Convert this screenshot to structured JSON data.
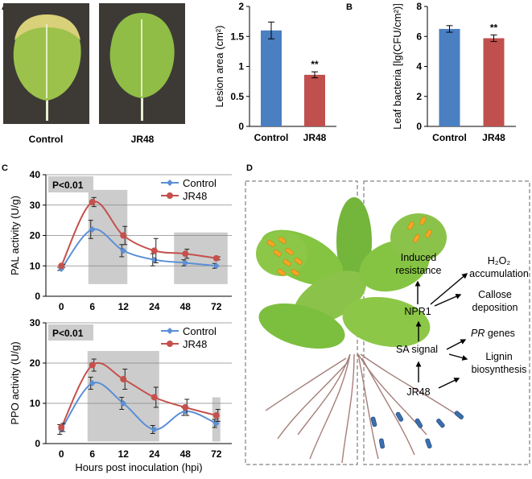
{
  "panel_labels": {
    "a": "A",
    "b": "B",
    "c": "C",
    "d": "D"
  },
  "photos": {
    "control_caption": "Control",
    "jr48_caption": "JR48"
  },
  "colors": {
    "control": "#4a7fc1",
    "jr48": "#c0504d",
    "control_line": "#5b8fd6",
    "jr48_line": "#c5504c",
    "leaf": "#8cc63f",
    "leaf_dark": "#6aa84f",
    "spot": "#f5a623",
    "bacteria": "#3a6fb0",
    "shade": "#cccccc"
  },
  "chart_data": [
    {
      "type": "bar",
      "categories": [
        "Control",
        "JR48"
      ],
      "values": [
        1.6,
        0.86
      ],
      "errors": [
        0.14,
        0.05
      ],
      "ylabel": "Lesion area (cm²)",
      "ylim": [
        0,
        2
      ],
      "yticks": [
        "0",
        "0.5",
        "1",
        "1.5",
        "2"
      ],
      "annotation": "**"
    },
    {
      "type": "bar",
      "categories": [
        "Control",
        "JR48"
      ],
      "values": [
        6.5,
        5.88
      ],
      "errors": [
        0.22,
        0.22
      ],
      "ylabel": "Leaf bacteria [lg(CFU/cm²)]",
      "ylim": [
        0,
        8
      ],
      "yticks": [
        "0",
        "2",
        "4",
        "6",
        "8"
      ],
      "annotation": "**"
    },
    {
      "type": "line",
      "x": [
        "0",
        "6",
        "12",
        "24",
        "48",
        "72"
      ],
      "series": [
        {
          "name": "Control",
          "values": [
            9,
            22,
            15,
            12,
            11,
            10
          ],
          "errors": [
            0.5,
            3,
            2,
            2,
            1,
            0.8
          ]
        },
        {
          "name": "JR48",
          "values": [
            10,
            31,
            20,
            15,
            14,
            12.5
          ],
          "errors": [
            0.5,
            1.5,
            3,
            4,
            1.5,
            0.5
          ]
        }
      ],
      "ylabel": "PAL activity (U/g)",
      "ylim": [
        0,
        40
      ],
      "yticks": [
        "0",
        "10",
        "20",
        "30",
        "40"
      ],
      "significance": "P<0.01",
      "legend": "top-right",
      "grid": true
    },
    {
      "type": "line",
      "x": [
        "0",
        "6",
        "12",
        "24",
        "48",
        "72"
      ],
      "series": [
        {
          "name": "Control",
          "values": [
            3.5,
            15,
            10,
            3.5,
            8,
            5
          ],
          "errors": [
            1.2,
            1.5,
            1.5,
            1,
            1,
            1
          ]
        },
        {
          "name": "JR48",
          "values": [
            4,
            19.5,
            16,
            11.5,
            9,
            7
          ],
          "errors": [
            1,
            1.5,
            2.5,
            2.5,
            2,
            1.5
          ]
        }
      ],
      "ylabel": "PPO activity (U/g)",
      "xlabel": "Hours post inoculation (hpi)",
      "ylim": [
        0,
        30
      ],
      "yticks": [
        "0",
        "10",
        "20",
        "30"
      ],
      "significance": "P<0.01",
      "legend": "top-right",
      "grid": true
    }
  ],
  "diagram": {
    "induced_resistance": [
      "Induced",
      "resistance"
    ],
    "h2o2": [
      "H₂O₂",
      "accumulation"
    ],
    "callose": [
      "Callose",
      "deposition"
    ],
    "npr1": "NPR1",
    "pr_genes_italic": "PR",
    "pr_genes_rest": " genes",
    "sa_signal": "SA signal",
    "lignin": [
      "Lignin",
      "biosynthesis"
    ],
    "jr48": "JR48"
  }
}
